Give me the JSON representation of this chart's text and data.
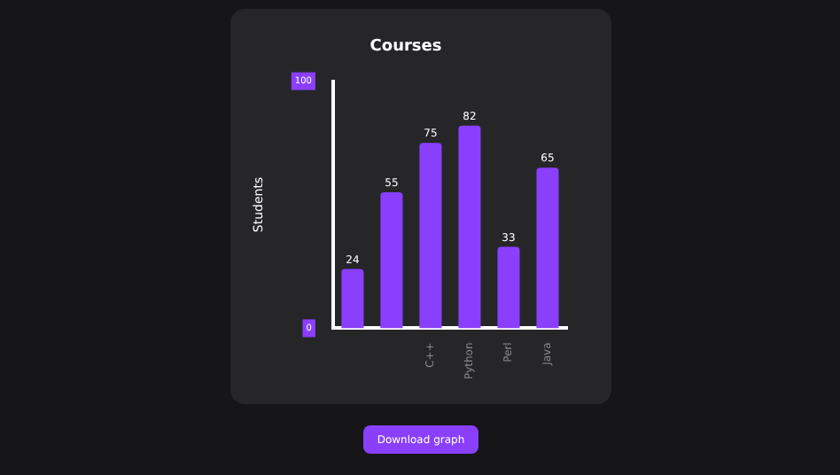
{
  "chart_data": {
    "type": "bar",
    "title": "Courses",
    "ylabel": "Students",
    "categories": [
      null,
      null,
      "C++",
      "Python",
      "Perl",
      "Java"
    ],
    "values": [
      24,
      55,
      75,
      82,
      33,
      65
    ],
    "color": "#8a3ffc",
    "ylim": [
      0,
      100
    ],
    "yticks": [
      0,
      100
    ],
    "grid": false,
    "legend": false,
    "data_labels": true,
    "annotations": [
      "Download graph"
    ]
  }
}
